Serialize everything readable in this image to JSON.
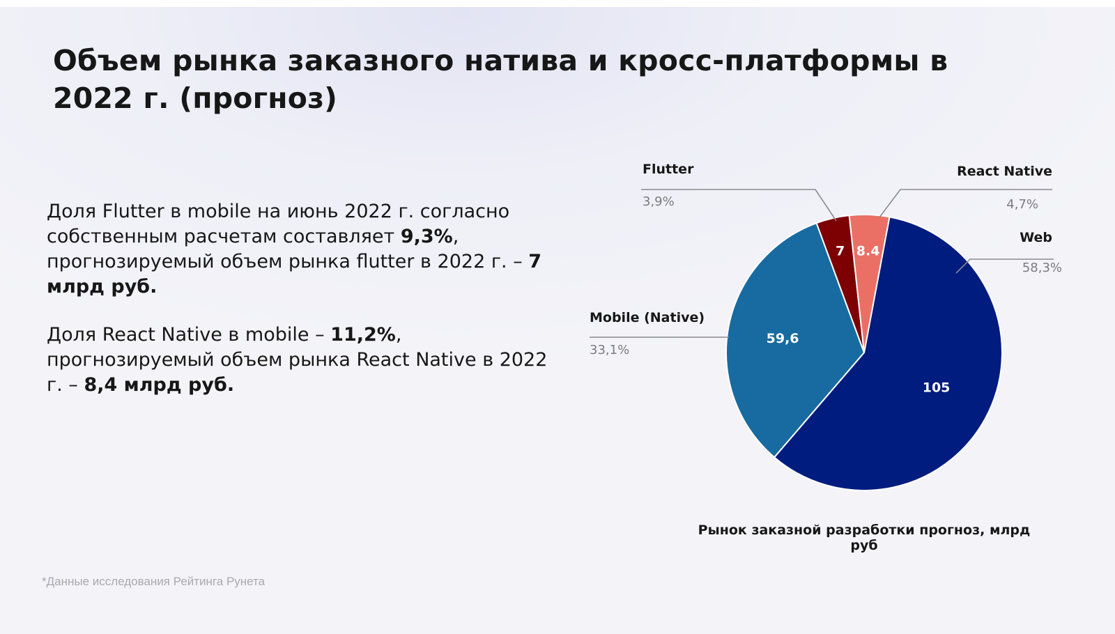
{
  "title": "Объем рынка заказного натива и кросс-платформы в 2022 г. (прогноз)",
  "paragraph1": {
    "t1": "Доля Flutter в mobile на июнь 2022 г. согласно собственным расчетам составляет ",
    "b1": "9,3%",
    "t2": ", прогнозируемый объем рынка flutter в 2022 г. – ",
    "b2": "7 млрд руб."
  },
  "paragraph2": {
    "t1": "Доля React Native в mobile – ",
    "b1": "11,2%",
    "t2": ", прогнозируемый объем рынка React Native в 2022 г. – ",
    "b2": "8,4 млрд руб."
  },
  "footnote": "*Данные исследования Рейтинга Рунета",
  "chart_data": {
    "type": "pie",
    "title": "Рынок заказной разработки прогноз, млрд руб",
    "slices": [
      {
        "name": "Web",
        "value": 105,
        "value_label": "105",
        "percent_label": "58,3%",
        "color": "#001c7f"
      },
      {
        "name": "Mobile (Native)",
        "value": 59.6,
        "value_label": "59,6",
        "percent_label": "33,1%",
        "color": "#176ba0"
      },
      {
        "name": "Flutter",
        "value": 7,
        "value_label": "7",
        "percent_label": "3,9%",
        "color": "#7d0003"
      },
      {
        "name": "React Native",
        "value": 8.4,
        "value_label": "8.4",
        "percent_label": "4,7%",
        "color": "#ea7066"
      }
    ],
    "legend": "callout-labels"
  },
  "colors": {
    "text": "#171717",
    "muted": "#7a7a80",
    "leader_line": "#8a8a90",
    "footnote": "#a8a8ae"
  }
}
